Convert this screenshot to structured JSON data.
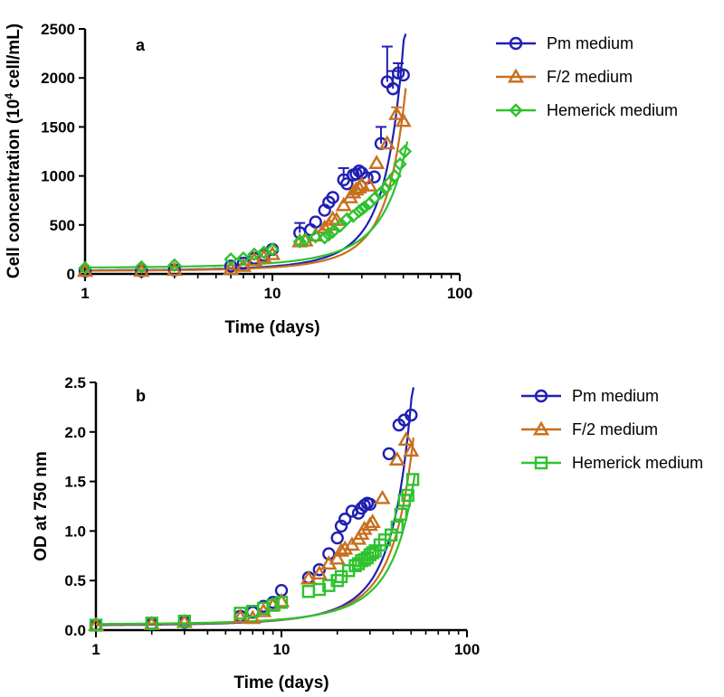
{
  "colors": {
    "pm": "#1f1fb4",
    "f2": "#c8701e",
    "hem": "#2ec22e",
    "axis": "#000000"
  },
  "chart_data": [
    {
      "type": "scatter",
      "panel": "a",
      "xscale": "log",
      "xlim": [
        1,
        100
      ],
      "ylim": [
        0,
        2500
      ],
      "xticks": [
        1,
        10,
        100
      ],
      "xtick_labels": [
        "1",
        "10",
        "100"
      ],
      "yticks": [
        0,
        500,
        1000,
        1500,
        2000,
        2500
      ],
      "ytick_labels": [
        "0",
        "500",
        "1000",
        "1500",
        "2000",
        "2500"
      ],
      "xlabel": "Time (days)",
      "ylabel_parts": [
        "Cell concentration (10",
        "4",
        " cell/mL)"
      ],
      "legend": {
        "position": "top-right",
        "entries": [
          "Pm medium",
          "F/2 medium",
          "Hemerick medium"
        ]
      },
      "series": [
        {
          "name": "Pm medium",
          "marker": "circle",
          "color_key": "pm",
          "x": [
            1,
            2,
            3,
            6,
            7,
            8,
            9,
            10,
            14,
            16,
            17,
            19,
            20,
            21,
            24,
            25,
            27,
            28,
            29,
            30,
            32,
            35,
            38,
            41,
            44,
            47,
            50
          ],
          "y": [
            30,
            30,
            40,
            80,
            110,
            160,
            190,
            250,
            420,
            450,
            530,
            650,
            730,
            780,
            960,
            920,
            1010,
            1020,
            1050,
            1030,
            980,
            990,
            1330,
            1960,
            1890,
            2050,
            2030
          ],
          "error_bars": [
            {
              "x": 14,
              "y": 420,
              "err": 100
            },
            {
              "x": 24,
              "y": 960,
              "err": 120
            },
            {
              "x": 38,
              "y": 1330,
              "err": 170
            },
            {
              "x": 41,
              "y": 1960,
              "err": 360
            },
            {
              "x": 44,
              "y": 1890,
              "err": 180
            },
            {
              "x": 47,
              "y": 2050,
              "err": 100
            }
          ],
          "fit": {
            "a": 33,
            "b": 0.0852
          }
        },
        {
          "name": "F/2 medium",
          "marker": "triangle",
          "color_key": "f2",
          "x": [
            1,
            2,
            3,
            6,
            7,
            8,
            9,
            10,
            14,
            15,
            17,
            19,
            20,
            21,
            22,
            24,
            26,
            27,
            28,
            29,
            30,
            33,
            36,
            41,
            46,
            50
          ],
          "y": [
            30,
            30,
            40,
            50,
            80,
            140,
            170,
            200,
            330,
            340,
            390,
            470,
            500,
            560,
            550,
            700,
            780,
            830,
            860,
            880,
            910,
            900,
            1130,
            1330,
            1630,
            1560
          ],
          "error_bars": [
            {
              "x": 46,
              "y": 1630,
              "err": 70
            }
          ],
          "fit": {
            "a": 30,
            "b": 0.0805
          }
        },
        {
          "name": "Hemerick medium",
          "marker": "diamond",
          "color_key": "hem",
          "x": [
            1,
            2,
            3,
            6,
            7,
            8,
            9,
            10,
            14,
            15,
            17,
            19,
            20,
            21,
            23,
            25,
            27,
            29,
            30,
            31,
            33,
            35,
            38,
            40,
            42,
            45,
            48,
            51
          ],
          "y": [
            60,
            70,
            90,
            150,
            160,
            200,
            220,
            250,
            330,
            350,
            380,
            370,
            400,
            430,
            490,
            560,
            590,
            640,
            660,
            680,
            720,
            770,
            830,
            870,
            930,
            1000,
            1120,
            1250
          ],
          "error_bars": [],
          "fit": {
            "a": 62,
            "b": 0.0587
          }
        }
      ]
    },
    {
      "type": "scatter",
      "panel": "b",
      "xscale": "log",
      "xlim": [
        1,
        100
      ],
      "ylim": [
        0,
        2.5
      ],
      "xticks": [
        1,
        10,
        100
      ],
      "xtick_labels": [
        "1",
        "10",
        "100"
      ],
      "yticks": [
        0,
        0.5,
        1,
        1.5,
        2,
        2.5
      ],
      "ytick_labels": [
        "0.0",
        "0.5",
        "1.0",
        "1.5",
        "2.0",
        "2.5"
      ],
      "xlabel": "Time (days)",
      "ylabel_parts": [
        "OD at 750 nm"
      ],
      "legend": {
        "position": "top-right",
        "entries": [
          "Pm medium",
          "F/2 medium",
          "Hemerick medium"
        ]
      },
      "series": [
        {
          "name": "Pm medium",
          "marker": "circle",
          "color_key": "pm",
          "x": [
            1,
            2,
            3,
            6,
            7,
            8,
            9,
            10,
            14,
            16,
            18,
            20,
            21,
            22,
            24,
            26,
            27,
            28,
            29,
            30,
            38,
            43,
            46,
            50
          ],
          "y": [
            0.05,
            0.06,
            0.08,
            0.14,
            0.18,
            0.24,
            0.28,
            0.4,
            0.53,
            0.61,
            0.77,
            0.93,
            1.05,
            1.12,
            1.2,
            1.18,
            1.23,
            1.26,
            1.28,
            1.27,
            1.78,
            2.07,
            2.12,
            2.17
          ],
          "error_bars": [],
          "fit": {
            "a": 0.047,
            "b": 0.0778
          }
        },
        {
          "name": "F/2 medium",
          "marker": "triangle",
          "color_key": "f2",
          "x": [
            1,
            2,
            3,
            6,
            7,
            8,
            9,
            10,
            14,
            16,
            18,
            20,
            21,
            22,
            24,
            26,
            27,
            28,
            30,
            31,
            35,
            42,
            47,
            50
          ],
          "y": [
            0.05,
            0.06,
            0.08,
            0.13,
            0.12,
            0.19,
            0.25,
            0.29,
            0.52,
            0.57,
            0.67,
            0.72,
            0.8,
            0.82,
            0.86,
            0.92,
            0.97,
            1.02,
            1.06,
            1.09,
            1.33,
            1.72,
            1.92,
            1.81
          ],
          "error_bars": [],
          "fit": {
            "a": 0.052,
            "b": 0.0703
          }
        },
        {
          "name": "Hemerick medium",
          "marker": "square",
          "color_key": "hem",
          "x": [
            1,
            2,
            3,
            6,
            7,
            8,
            9,
            10,
            14,
            16,
            18,
            20,
            21,
            23,
            25,
            26,
            27,
            28,
            29,
            30,
            31,
            32,
            34,
            36,
            39,
            42,
            44,
            46,
            48,
            51
          ],
          "y": [
            0.05,
            0.07,
            0.09,
            0.17,
            0.19,
            0.22,
            0.25,
            0.28,
            0.39,
            0.41,
            0.45,
            0.5,
            0.54,
            0.6,
            0.65,
            0.67,
            0.7,
            0.71,
            0.73,
            0.76,
            0.78,
            0.8,
            0.86,
            0.91,
            0.96,
            1.04,
            1.17,
            1.31,
            1.36,
            1.52
          ],
          "error_bars": [],
          "fit": {
            "a": 0.058,
            "b": 0.063
          }
        }
      ]
    }
  ]
}
